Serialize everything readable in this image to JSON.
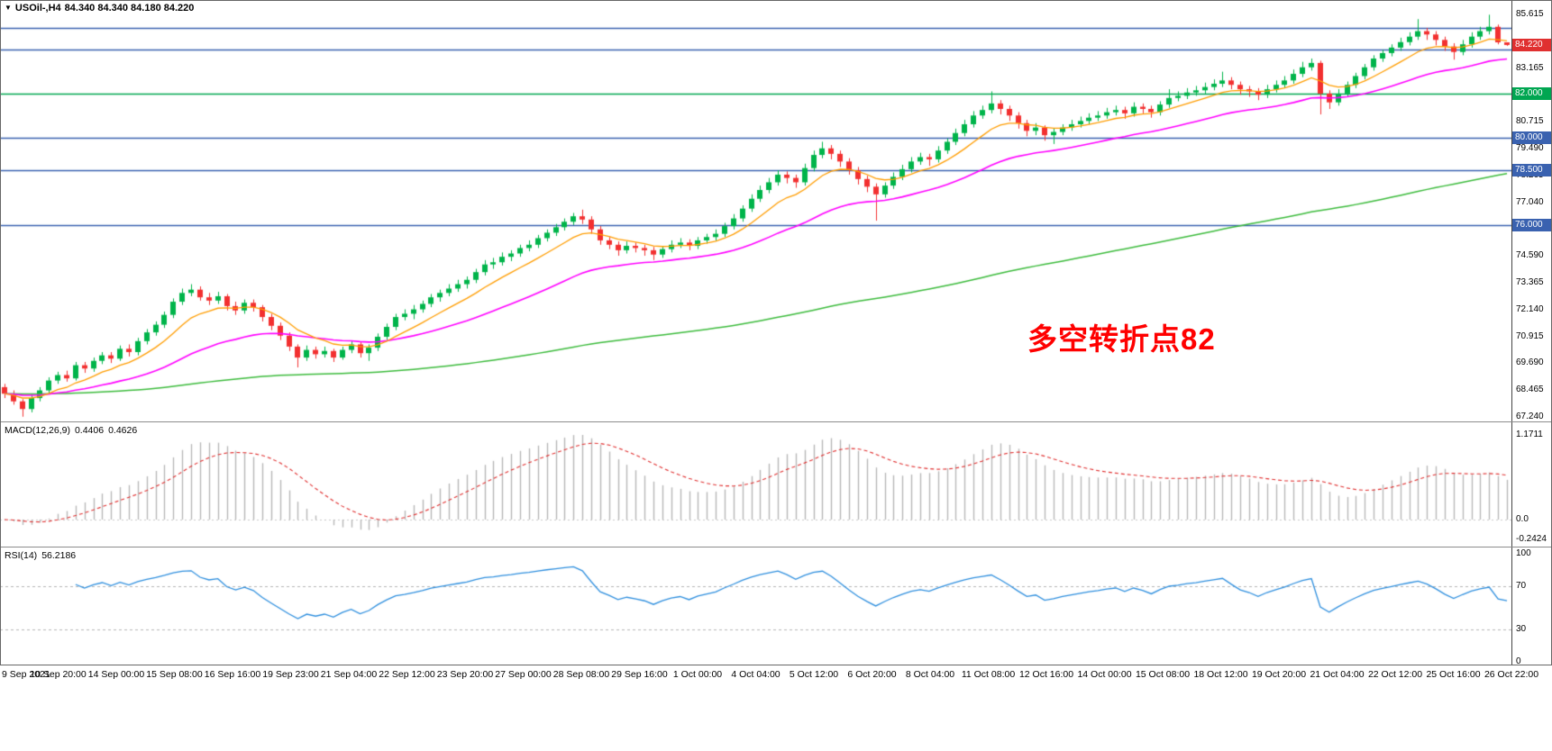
{
  "header": {
    "display": "USOil-,H4",
    "symbol": "USOil-",
    "timeframe": "H4",
    "open": "84.340",
    "high": "84.340",
    "low": "84.180",
    "close": "84.220",
    "ohlc": "84.340 84.340 84.180 84.220"
  },
  "icons": {
    "symbol_dropdown": "▼"
  },
  "chart_data": {
    "type": "candlestick",
    "symbol": "USOil-",
    "timeframe": "H4",
    "x_labels": [
      "9 Sep 2021",
      "10 Sep 20:00",
      "14 Sep 00:00",
      "15 Sep 08:00",
      "16 Sep 16:00",
      "19 Sep 23:00",
      "21 Sep 04:00",
      "22 Sep 12:00",
      "23 Sep 20:00",
      "27 Sep 00:00",
      "28 Sep 08:00",
      "29 Sep 16:00",
      "1 Oct 00:00",
      "4 Oct 04:00",
      "5 Oct 12:00",
      "6 Oct 20:00",
      "8 Oct 04:00",
      "11 Oct 08:00",
      "12 Oct 16:00",
      "14 Oct 00:00",
      "15 Oct 08:00",
      "18 Oct 12:00",
      "19 Oct 20:00",
      "21 Oct 04:00",
      "22 Oct 12:00",
      "25 Oct 16:00",
      "26 Oct 22:00"
    ],
    "colors": {
      "bull": "#00b44a",
      "bear": "#f23030",
      "ma_fast": "#ff9d00",
      "ma_mid": "#ff00ff",
      "ma_slow": "#3dbb3d",
      "hline_green": "#00a651",
      "hline_blue": "#3a62b0",
      "price_tag_red": "#e03030",
      "macd_hist": "#b8b8b8",
      "macd_signal": "#e03030",
      "rsi_line": "#2f8fde",
      "annotation_red": "#ff0000"
    },
    "main": {
      "y_ticks": [
        "85.615",
        "83.165",
        "80.715",
        "79.490",
        "78.265",
        "77.040",
        "75.815",
        "74.590",
        "73.365",
        "72.140",
        "70.915",
        "69.690",
        "68.465",
        "67.240"
      ],
      "current_price": 84.22,
      "current_price_label": "84.220",
      "hlines": [
        {
          "price": 85.0,
          "color_key": "hline_blue",
          "tag": null
        },
        {
          "price": 84.0,
          "color_key": "hline_blue",
          "tag": null
        },
        {
          "price": 82.0,
          "color_key": "hline_green",
          "tag": "82.000"
        },
        {
          "price": 80.0,
          "color_key": "hline_blue",
          "tag": "80.000"
        },
        {
          "price": 78.5,
          "color_key": "hline_blue",
          "tag": "78.500"
        },
        {
          "price": 76.0,
          "color_key": "hline_blue",
          "tag": "76.000"
        }
      ],
      "annotation": {
        "text": "多空转折点82",
        "color": "#ff0000"
      },
      "moving_averages": [
        {
          "name": "ma-fast",
          "color_key": "ma_fast"
        },
        {
          "name": "ma-mid",
          "color_key": "ma_mid"
        },
        {
          "name": "ma-slow",
          "color_key": "ma_slow"
        }
      ],
      "candles_ohlc": [
        [
          68.6,
          68.75,
          68.1,
          68.3
        ],
        [
          68.3,
          68.45,
          67.8,
          67.95
        ],
        [
          67.95,
          68.05,
          67.25,
          67.6
        ],
        [
          67.6,
          68.25,
          67.45,
          68.1
        ],
        [
          68.1,
          68.6,
          67.95,
          68.45
        ],
        [
          68.45,
          69.05,
          68.3,
          68.9
        ],
        [
          68.9,
          69.3,
          68.75,
          69.15
        ],
        [
          69.15,
          69.35,
          68.85,
          69.0
        ],
        [
          69.0,
          69.75,
          68.9,
          69.6
        ],
        [
          69.6,
          69.75,
          69.25,
          69.45
        ],
        [
          69.45,
          69.95,
          69.3,
          69.8
        ],
        [
          69.8,
          70.2,
          69.65,
          70.05
        ],
        [
          70.05,
          70.2,
          69.7,
          69.9
        ],
        [
          69.9,
          70.5,
          69.8,
          70.35
        ],
        [
          70.35,
          70.55,
          70.0,
          70.2
        ],
        [
          70.2,
          70.85,
          70.05,
          70.7
        ],
        [
          70.7,
          71.25,
          70.55,
          71.1
        ],
        [
          71.1,
          71.6,
          70.95,
          71.45
        ],
        [
          71.45,
          72.05,
          71.3,
          71.9
        ],
        [
          71.9,
          72.65,
          71.75,
          72.5
        ],
        [
          72.5,
          73.1,
          72.35,
          72.9
        ],
        [
          72.9,
          73.3,
          72.75,
          73.05
        ],
        [
          73.05,
          73.2,
          72.55,
          72.7
        ],
        [
          72.7,
          72.9,
          72.35,
          72.55
        ],
        [
          72.55,
          72.95,
          72.4,
          72.75
        ],
        [
          72.75,
          72.85,
          72.1,
          72.3
        ],
        [
          72.3,
          72.5,
          71.9,
          72.1
        ],
        [
          72.1,
          72.6,
          71.95,
          72.45
        ],
        [
          72.45,
          72.6,
          72.05,
          72.25
        ],
        [
          72.25,
          72.35,
          71.6,
          71.8
        ],
        [
          71.8,
          71.95,
          71.2,
          71.4
        ],
        [
          71.4,
          71.55,
          70.75,
          70.95
        ],
        [
          70.95,
          71.1,
          70.25,
          70.45
        ],
        [
          70.45,
          70.55,
          69.5,
          69.95
        ],
        [
          69.95,
          70.5,
          69.8,
          70.3
        ],
        [
          70.3,
          70.45,
          69.9,
          70.1
        ],
        [
          70.1,
          70.45,
          69.95,
          70.25
        ],
        [
          70.25,
          70.35,
          69.75,
          69.95
        ],
        [
          69.95,
          70.45,
          69.85,
          70.3
        ],
        [
          70.3,
          70.7,
          70.15,
          70.55
        ],
        [
          70.55,
          70.65,
          69.95,
          70.15
        ],
        [
          70.15,
          70.55,
          69.8,
          70.4
        ],
        [
          70.4,
          71.05,
          70.25,
          70.9
        ],
        [
          70.9,
          71.5,
          70.75,
          71.35
        ],
        [
          71.35,
          71.95,
          71.2,
          71.8
        ],
        [
          71.8,
          72.15,
          71.65,
          71.95
        ],
        [
          71.95,
          72.35,
          71.7,
          72.15
        ],
        [
          72.15,
          72.55,
          72.0,
          72.4
        ],
        [
          72.4,
          72.85,
          72.25,
          72.7
        ],
        [
          72.7,
          73.05,
          72.5,
          72.9
        ],
        [
          72.9,
          73.3,
          72.75,
          73.1
        ],
        [
          73.1,
          73.5,
          72.95,
          73.3
        ],
        [
          73.3,
          73.65,
          73.1,
          73.5
        ],
        [
          73.5,
          74.0,
          73.35,
          73.85
        ],
        [
          73.85,
          74.4,
          73.7,
          74.2
        ],
        [
          74.2,
          74.5,
          74.0,
          74.3
        ],
        [
          74.3,
          74.75,
          74.15,
          74.55
        ],
        [
          74.55,
          74.85,
          74.35,
          74.7
        ],
        [
          74.7,
          75.1,
          74.55,
          74.95
        ],
        [
          74.95,
          75.3,
          74.8,
          75.1
        ],
        [
          75.1,
          75.55,
          74.95,
          75.4
        ],
        [
          75.4,
          75.8,
          75.25,
          75.65
        ],
        [
          75.65,
          76.05,
          75.5,
          75.9
        ],
        [
          75.9,
          76.3,
          75.75,
          76.15
        ],
        [
          76.15,
          76.55,
          76.0,
          76.4
        ],
        [
          76.4,
          76.7,
          76.05,
          76.25
        ],
        [
          76.25,
          76.4,
          75.6,
          75.8
        ],
        [
          75.8,
          75.95,
          75.1,
          75.3
        ],
        [
          75.3,
          75.45,
          74.9,
          75.1
        ],
        [
          75.1,
          75.25,
          74.6,
          74.85
        ],
        [
          74.85,
          75.25,
          74.7,
          75.05
        ],
        [
          75.05,
          75.2,
          74.75,
          74.95
        ],
        [
          74.95,
          75.1,
          74.6,
          74.85
        ],
        [
          74.85,
          75.0,
          74.4,
          74.65
        ],
        [
          74.65,
          75.05,
          74.5,
          74.9
        ],
        [
          74.9,
          75.3,
          74.75,
          75.1
        ],
        [
          75.1,
          75.4,
          74.95,
          75.2
        ],
        [
          75.2,
          75.35,
          74.85,
          75.05
        ],
        [
          75.05,
          75.45,
          74.9,
          75.3
        ],
        [
          75.3,
          75.6,
          75.15,
          75.45
        ],
        [
          75.45,
          75.8,
          75.3,
          75.6
        ],
        [
          75.6,
          76.1,
          75.45,
          75.95
        ],
        [
          75.95,
          76.5,
          75.8,
          76.3
        ],
        [
          76.3,
          76.9,
          76.15,
          76.75
        ],
        [
          76.75,
          77.4,
          76.6,
          77.2
        ],
        [
          77.2,
          77.8,
          77.05,
          77.6
        ],
        [
          77.6,
          78.15,
          77.45,
          77.95
        ],
        [
          77.95,
          78.5,
          77.8,
          78.3
        ],
        [
          78.3,
          78.45,
          77.9,
          78.15
        ],
        [
          78.15,
          78.3,
          77.7,
          77.95
        ],
        [
          77.95,
          78.8,
          77.8,
          78.6
        ],
        [
          78.6,
          79.4,
          78.45,
          79.2
        ],
        [
          79.2,
          79.8,
          79.05,
          79.5
        ],
        [
          79.5,
          79.65,
          79.0,
          79.25
        ],
        [
          79.25,
          79.4,
          78.65,
          78.9
        ],
        [
          78.9,
          79.05,
          78.3,
          78.5
        ],
        [
          78.5,
          78.65,
          77.85,
          78.1
        ],
        [
          78.1,
          78.25,
          77.5,
          77.75
        ],
        [
          77.75,
          77.9,
          76.2,
          77.4
        ],
        [
          77.4,
          77.95,
          77.25,
          77.8
        ],
        [
          77.8,
          78.4,
          77.65,
          78.2
        ],
        [
          78.2,
          78.75,
          78.05,
          78.55
        ],
        [
          78.55,
          79.1,
          78.4,
          78.9
        ],
        [
          78.9,
          79.3,
          78.75,
          79.1
        ],
        [
          79.1,
          79.25,
          78.7,
          79.0
        ],
        [
          79.0,
          79.6,
          78.85,
          79.4
        ],
        [
          79.4,
          79.95,
          79.25,
          79.8
        ],
        [
          79.8,
          80.4,
          79.65,
          80.2
        ],
        [
          80.2,
          80.8,
          80.05,
          80.6
        ],
        [
          80.6,
          81.2,
          80.45,
          81.0
        ],
        [
          81.0,
          81.45,
          80.85,
          81.25
        ],
        [
          81.25,
          82.1,
          81.1,
          81.55
        ],
        [
          81.55,
          81.7,
          81.05,
          81.3
        ],
        [
          81.3,
          81.45,
          80.75,
          81.0
        ],
        [
          81.0,
          81.15,
          80.4,
          80.65
        ],
        [
          80.65,
          80.8,
          80.05,
          80.3
        ],
        [
          80.3,
          80.65,
          80.1,
          80.45
        ],
        [
          80.45,
          80.55,
          79.85,
          80.1
        ],
        [
          80.1,
          80.4,
          79.7,
          80.25
        ],
        [
          80.25,
          80.6,
          80.1,
          80.45
        ],
        [
          80.45,
          80.8,
          80.3,
          80.6
        ],
        [
          80.6,
          80.95,
          80.45,
          80.75
        ],
        [
          80.75,
          81.1,
          80.6,
          80.9
        ],
        [
          80.9,
          81.2,
          80.75,
          81.0
        ],
        [
          81.0,
          81.35,
          80.85,
          81.15
        ],
        [
          81.15,
          81.45,
          81.0,
          81.25
        ],
        [
          81.25,
          81.4,
          80.85,
          81.1
        ],
        [
          81.1,
          81.6,
          80.95,
          81.4
        ],
        [
          81.4,
          81.55,
          81.1,
          81.3
        ],
        [
          81.3,
          81.45,
          80.9,
          81.15
        ],
        [
          81.15,
          81.65,
          81.0,
          81.5
        ],
        [
          81.5,
          82.2,
          81.35,
          81.8
        ],
        [
          81.8,
          82.1,
          81.65,
          81.9
        ],
        [
          81.9,
          82.25,
          81.75,
          82.05
        ],
        [
          82.05,
          82.35,
          81.9,
          82.15
        ],
        [
          82.15,
          82.5,
          82.0,
          82.3
        ],
        [
          82.3,
          82.65,
          82.15,
          82.45
        ],
        [
          82.45,
          83.0,
          82.3,
          82.6
        ],
        [
          82.6,
          82.75,
          82.2,
          82.4
        ],
        [
          82.4,
          82.55,
          81.95,
          82.2
        ],
        [
          82.2,
          82.35,
          81.85,
          82.1
        ],
        [
          82.1,
          82.25,
          81.7,
          81.95
        ],
        [
          81.95,
          82.4,
          81.8,
          82.2
        ],
        [
          82.2,
          82.6,
          82.05,
          82.4
        ],
        [
          82.4,
          82.8,
          82.25,
          82.6
        ],
        [
          82.6,
          83.1,
          82.45,
          82.9
        ],
        [
          82.9,
          83.45,
          82.75,
          83.2
        ],
        [
          83.2,
          83.6,
          83.05,
          83.4
        ],
        [
          83.4,
          83.5,
          81.05,
          82.0
        ],
        [
          82.0,
          82.15,
          81.3,
          81.6
        ],
        [
          81.6,
          82.2,
          81.45,
          82.0
        ],
        [
          82.0,
          82.55,
          81.85,
          82.4
        ],
        [
          82.4,
          82.95,
          82.25,
          82.8
        ],
        [
          82.8,
          83.35,
          82.65,
          83.2
        ],
        [
          83.2,
          83.75,
          83.05,
          83.6
        ],
        [
          83.6,
          84.0,
          83.45,
          83.85
        ],
        [
          83.85,
          84.25,
          83.7,
          84.1
        ],
        [
          84.1,
          84.55,
          83.95,
          84.35
        ],
        [
          84.35,
          84.8,
          84.2,
          84.6
        ],
        [
          84.6,
          85.4,
          84.45,
          84.85
        ],
        [
          84.85,
          85.0,
          84.45,
          84.7
        ],
        [
          84.7,
          84.85,
          84.2,
          84.45
        ],
        [
          84.45,
          84.6,
          83.95,
          84.15
        ],
        [
          84.15,
          84.3,
          83.55,
          83.9
        ],
        [
          83.9,
          84.45,
          83.75,
          84.25
        ],
        [
          84.25,
          84.8,
          84.1,
          84.6
        ],
        [
          84.6,
          85.05,
          84.45,
          84.85
        ],
        [
          84.85,
          85.6,
          84.7,
          85.05
        ],
        [
          85.05,
          85.15,
          84.25,
          84.34
        ],
        [
          84.34,
          84.34,
          84.18,
          84.22
        ]
      ]
    },
    "macd": {
      "label": "MACD(12,26,9)",
      "value_main": "0.4406",
      "value_signal": "0.4626",
      "params": [
        12,
        26,
        9
      ],
      "y_ticks": [
        "1.1711",
        "0.0",
        "-0.2424"
      ],
      "derived_from": "candles_ohlc closes"
    },
    "rsi": {
      "label": "RSI(14)",
      "value": "56.2186",
      "period": 14,
      "y_ticks": [
        "100",
        "70",
        "30",
        "0"
      ],
      "levels": [
        70,
        30
      ],
      "derived_from": "candles_ohlc closes"
    }
  }
}
